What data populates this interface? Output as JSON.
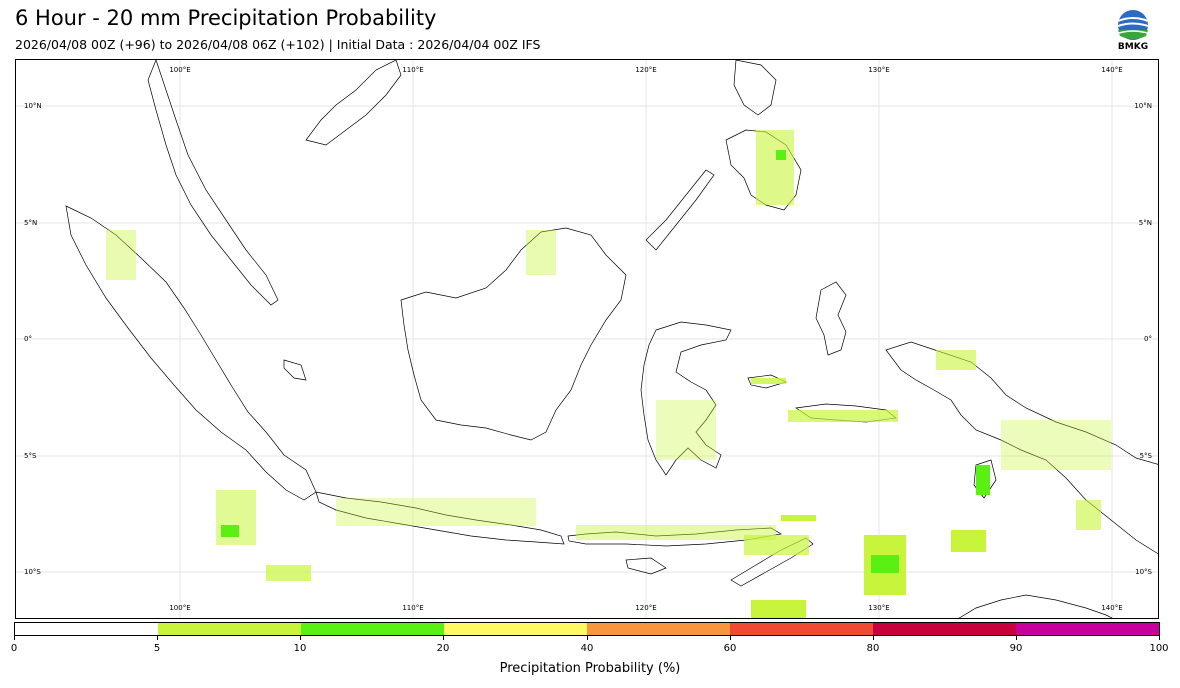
{
  "header": {
    "title": "6 Hour - 20 mm Precipitation Probability",
    "subtitle": "2026/04/08 00Z (+96) to 2026/04/08 06Z (+102) | Initial Data : 2026/04/04 00Z IFS"
  },
  "logo": {
    "text": "BMKG",
    "icon": "bmkg-logo-icon"
  },
  "map": {
    "lon_labels_top": [
      "100°E",
      "110°E",
      "120°E",
      "130°E",
      "140°E"
    ],
    "lon_labels_bottom": [
      "100°E",
      "110°E",
      "120°E",
      "130°E",
      "140°E"
    ],
    "lat_labels_left": [
      "10°N",
      "5°N",
      "0°",
      "5°S",
      "10°S"
    ],
    "lat_labels_right": [
      "10°N",
      "5°N",
      "0°",
      "5°S",
      "10°S"
    ]
  },
  "colorbar": {
    "title": "Precipitation Probability (%)",
    "ticks": [
      "0",
      "5",
      "10",
      "20",
      "40",
      "60",
      "80",
      "90",
      "100"
    ],
    "colors": [
      "#ffffff",
      "#c8f53c",
      "#5af014",
      "#fff964",
      "#f7963c",
      "#f04b32",
      "#c8003c",
      "#c8009b"
    ]
  }
}
